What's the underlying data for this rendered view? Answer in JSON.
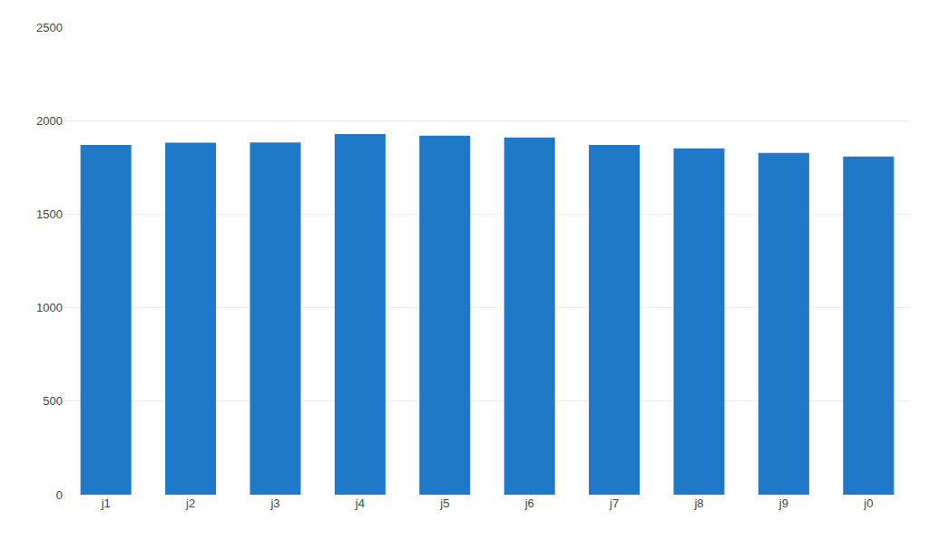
{
  "chart_data": {
    "type": "bar",
    "categories": [
      "j1",
      "j2",
      "j3",
      "j4",
      "j5",
      "j6",
      "j7",
      "j8",
      "j9",
      "j0"
    ],
    "values": [
      1870,
      1882,
      1884,
      1928,
      1920,
      1910,
      1870,
      1852,
      1828,
      1808
    ],
    "color": "#2079C8",
    "ylim": [
      0,
      2500
    ],
    "yticks": [
      0,
      500,
      1000,
      1500,
      2000,
      2500
    ],
    "grid": true
  }
}
